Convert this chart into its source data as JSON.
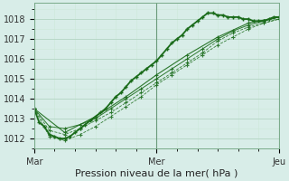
{
  "xlabel": "Pression niveau de la mer( hPa )",
  "bg_color": "#d8ede8",
  "grid_major_color": "#b8d8c8",
  "grid_minor_color": "#cce8d8",
  "line_color": "#1a6b1a",
  "ylim": [
    1011.5,
    1018.8
  ],
  "xlim": [
    0,
    48
  ],
  "xticks": [
    0,
    24,
    48
  ],
  "xtick_labels": [
    "Mar",
    "Mer",
    "Jeu"
  ],
  "yticks": [
    1012,
    1013,
    1014,
    1015,
    1016,
    1017,
    1018
  ],
  "series": {
    "main_x": [
      0,
      1,
      2,
      3,
      4,
      5,
      6,
      7,
      8,
      9,
      10,
      11,
      12,
      13,
      14,
      15,
      16,
      17,
      18,
      19,
      20,
      21,
      22,
      23,
      24,
      25,
      26,
      27,
      28,
      29,
      30,
      31,
      32,
      33,
      34,
      35,
      36,
      37,
      38,
      39,
      40,
      41,
      42,
      43,
      44,
      45,
      46,
      47,
      48
    ],
    "main_y": [
      1013.5,
      1012.8,
      1012.6,
      1012.2,
      1012.1,
      1012.0,
      1012.0,
      1012.1,
      1012.3,
      1012.5,
      1012.7,
      1012.9,
      1013.1,
      1013.3,
      1013.5,
      1013.8,
      1014.1,
      1014.3,
      1014.6,
      1014.9,
      1015.1,
      1015.3,
      1015.5,
      1015.7,
      1015.9,
      1016.2,
      1016.5,
      1016.8,
      1017.0,
      1017.2,
      1017.5,
      1017.7,
      1017.9,
      1018.1,
      1018.3,
      1018.3,
      1018.2,
      1018.2,
      1018.1,
      1018.1,
      1018.1,
      1018.0,
      1018.0,
      1017.9,
      1017.9,
      1017.9,
      1018.0,
      1018.1,
      1018.1
    ],
    "line2_x": [
      0,
      3,
      6,
      9,
      12,
      15,
      18,
      21,
      24,
      27,
      30,
      33,
      36,
      39,
      42,
      45,
      48
    ],
    "line2_y": [
      1013.5,
      1012.4,
      1012.2,
      1012.5,
      1012.9,
      1013.3,
      1013.8,
      1014.3,
      1014.8,
      1015.3,
      1015.8,
      1016.3,
      1016.9,
      1017.3,
      1017.6,
      1017.8,
      1018.0
    ],
    "line3_x": [
      0,
      3,
      6,
      9,
      12,
      15,
      18,
      21,
      24,
      27,
      30,
      33,
      36,
      39,
      42,
      45,
      48
    ],
    "line3_y": [
      1013.5,
      1012.6,
      1012.5,
      1012.7,
      1013.0,
      1013.5,
      1014.0,
      1014.5,
      1015.0,
      1015.5,
      1016.0,
      1016.5,
      1017.0,
      1017.4,
      1017.7,
      1017.9,
      1018.1
    ],
    "line4_x": [
      0,
      3,
      6,
      9,
      12,
      15,
      18,
      21,
      24,
      27,
      30,
      33,
      36,
      39,
      42,
      45,
      48
    ],
    "line4_y": [
      1013.5,
      1012.1,
      1011.9,
      1012.2,
      1012.6,
      1013.1,
      1013.6,
      1014.1,
      1014.7,
      1015.2,
      1015.7,
      1016.2,
      1016.7,
      1017.1,
      1017.5,
      1017.8,
      1018.0
    ],
    "line5_x": [
      0,
      6,
      12,
      18,
      24,
      30,
      36,
      42,
      48
    ],
    "line5_y": [
      1013.5,
      1012.3,
      1013.1,
      1014.1,
      1015.2,
      1016.2,
      1017.1,
      1017.8,
      1018.1
    ]
  }
}
